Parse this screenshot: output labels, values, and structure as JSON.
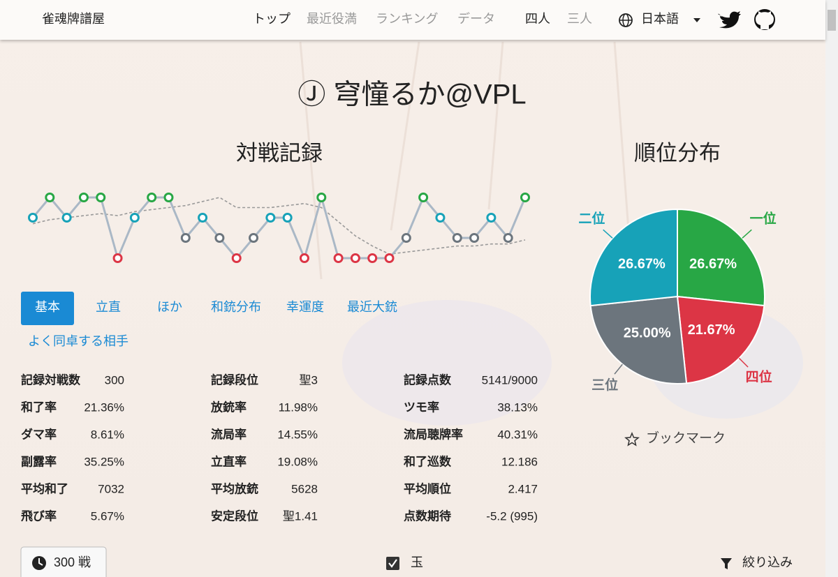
{
  "nav": {
    "brand": "雀魂牌譜屋",
    "links": [
      "トップ",
      "最近役満",
      "ランキング",
      "データ"
    ],
    "modes": [
      "四人",
      "三人"
    ],
    "language": "日本語"
  },
  "title": "Ⓙ 穹憧るか@VPL",
  "chart_data": [
    {
      "type": "line",
      "title": "対戦記録",
      "values": [
        2,
        1,
        2,
        1,
        1,
        4,
        2,
        1,
        1,
        3,
        2,
        3,
        4,
        3,
        2,
        2,
        4,
        1,
        4,
        4,
        4,
        4,
        3,
        1,
        2,
        3,
        3,
        2,
        3,
        1
      ],
      "average": [
        2.3,
        2.1,
        2.0,
        1.9,
        1.8,
        1.9,
        1.7,
        1.6,
        1.5,
        1.4,
        1.2,
        1.0,
        1.5,
        1.5,
        1.5,
        1.4,
        1.3,
        1.5,
        2.2,
        2.9,
        3.4,
        3.8,
        3.7,
        3.6,
        3.5,
        3.4,
        3.4,
        3.3,
        3.3,
        3.1
      ],
      "ylim": [
        4,
        1
      ],
      "rank_colors": [
        "#28a745",
        "#17a2b8",
        "#6c757d",
        "#dc3545"
      ]
    },
    {
      "type": "pie",
      "title": "順位分布",
      "categories": [
        "一位",
        "二位",
        "三位",
        "四位"
      ],
      "values": [
        26.67,
        26.67,
        25,
        21.67
      ],
      "value_labels": [
        "26.67%",
        "26.67%",
        "25.00%",
        "21.67%"
      ],
      "colors": [
        "#28a745",
        "#17a2b8",
        "#6c757d",
        "#dc3545"
      ]
    }
  ],
  "tabs": [
    "基本",
    "立直",
    "ほか",
    "和銃分布",
    "幸運度",
    "最近大銃",
    "よく同卓する相手"
  ],
  "stats": [
    [
      [
        "記録対戦数",
        "300"
      ],
      [
        "和了率",
        "21.36%"
      ],
      [
        "ダマ率",
        "8.61%"
      ],
      [
        "副露率",
        "35.25%"
      ],
      [
        "平均和了",
        "7032"
      ],
      [
        "飛び率",
        "5.67%"
      ]
    ],
    [
      [
        "記録段位",
        "聖3"
      ],
      [
        "放銃率",
        "11.98%"
      ],
      [
        "流局率",
        "14.55%"
      ],
      [
        "立直率",
        "19.08%"
      ],
      [
        "平均放銃",
        "5628"
      ],
      [
        "安定段位",
        "聖1.41"
      ]
    ],
    [
      [
        "記録点数",
        "5141/9000"
      ],
      [
        "ツモ率",
        "38.13%"
      ],
      [
        "流局聴牌率",
        "40.31%"
      ],
      [
        "和了巡数",
        "12.186"
      ],
      [
        "平均順位",
        "2.417"
      ],
      [
        "点数期待",
        "-5.2 (995)"
      ]
    ]
  ],
  "bookmark": "ブックマーク",
  "footer": {
    "games": "300 戦",
    "room": "玉",
    "filter": "絞り込み"
  }
}
